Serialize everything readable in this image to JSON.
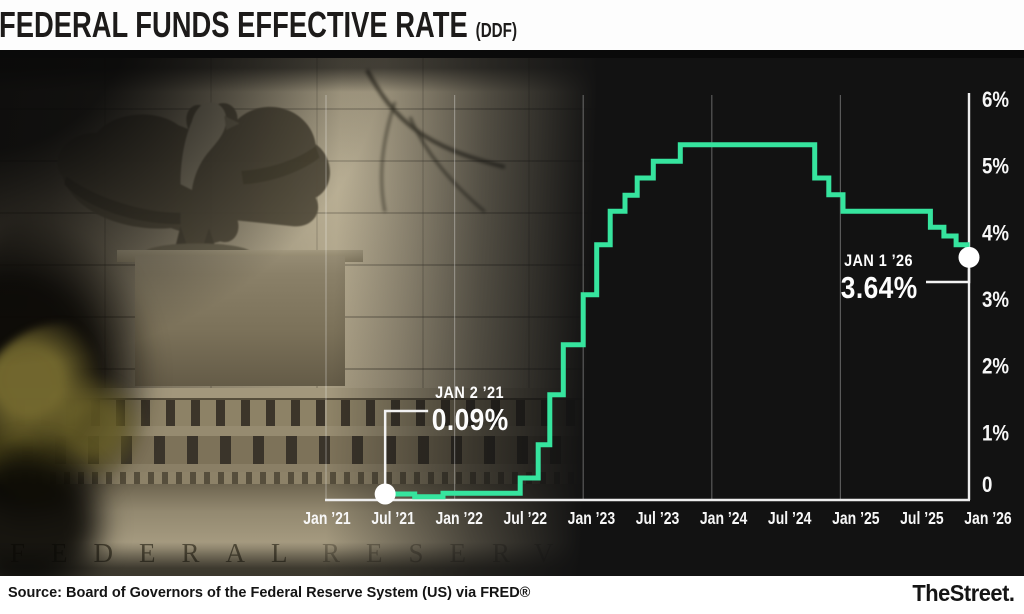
{
  "header": {
    "title": "FEDERAL FUNDS EFFECTIVE RATE",
    "ticker": "(DDF)"
  },
  "photo": {
    "engraving_left": "FEDERAL",
    "engraving_right": "RESERV"
  },
  "chart_data": {
    "type": "line",
    "subtype": "step",
    "title": "Federal Funds Effective Rate (DDF)",
    "xlabel": "",
    "ylabel": "",
    "ylim": [
      0,
      6
    ],
    "grid": "vertical-yearly",
    "legend": "none",
    "line_color": "#36e49e",
    "dot_color": "#ffffff",
    "axis_color": "#ededed",
    "label_color": "#f7f7f7",
    "y_ticks": [
      {
        "value": 6,
        "label": "6%"
      },
      {
        "value": 5,
        "label": "5%"
      },
      {
        "value": 4,
        "label": "4%"
      },
      {
        "value": 3,
        "label": "3%"
      },
      {
        "value": 2,
        "label": "2%"
      },
      {
        "value": 1,
        "label": "1%"
      },
      {
        "value": 0,
        "label": "0"
      }
    ],
    "x_ticks": [
      "Jan ’21",
      "Jul ’21",
      "Jan ’22",
      "Jul ’22",
      "Jan ’23",
      "Jul ’23",
      "Jan ’24",
      "Jul ’24",
      "Jan ’25",
      "Jul ’25",
      "Jan ’26"
    ],
    "year_gridlines": [
      "Jan '21",
      "Jan '22",
      "Jan '23",
      "Jan '24",
      "Jan '25"
    ],
    "steps": [
      {
        "date": "Jan 2 '21",
        "rate": 0.09,
        "x": 0.092
      },
      {
        "date": "Apr '21",
        "rate": 0.05,
        "x": 0.138
      },
      {
        "date": "Jun '21",
        "rate": 0.1,
        "x": 0.182
      },
      {
        "date": "Mar '22",
        "rate": 0.33,
        "x": 0.302
      },
      {
        "date": "May '22",
        "rate": 0.83,
        "x": 0.33
      },
      {
        "date": "Jun '22",
        "rate": 1.58,
        "x": 0.348
      },
      {
        "date": "Jul '22",
        "rate": 2.33,
        "x": 0.369
      },
      {
        "date": "Sep '22",
        "rate": 3.08,
        "x": 0.4
      },
      {
        "date": "Nov '22",
        "rate": 3.83,
        "x": 0.421
      },
      {
        "date": "Dec '22",
        "rate": 4.33,
        "x": 0.442
      },
      {
        "date": "Feb '23",
        "rate": 4.57,
        "x": 0.465
      },
      {
        "date": "Mar '23",
        "rate": 4.83,
        "x": 0.484
      },
      {
        "date": "May '23",
        "rate": 5.08,
        "x": 0.509
      },
      {
        "date": "Jul '23",
        "rate": 5.33,
        "x": 0.551
      },
      {
        "date": "Sep '24",
        "rate": 4.83,
        "x": 0.76
      },
      {
        "date": "Nov '24",
        "rate": 4.58,
        "x": 0.782
      },
      {
        "date": "Dec '24",
        "rate": 4.33,
        "x": 0.804
      },
      {
        "date": "Sep '25",
        "rate": 4.09,
        "x": 0.94
      },
      {
        "date": "Oct '25",
        "rate": 3.96,
        "x": 0.961
      },
      {
        "date": "Nov '25",
        "rate": 3.83,
        "x": 0.98
      },
      {
        "date": "Dec '25",
        "rate": 3.64,
        "x": 0.997
      }
    ],
    "end_value": 3.64,
    "annotations": [
      {
        "id": "start",
        "label": "JAN 2 ’21",
        "value": "0.09%"
      },
      {
        "id": "end",
        "label": "JAN 1 ’26",
        "value": "3.64%"
      }
    ]
  },
  "footer": {
    "source": "Source: Board of Governors of the Federal Reserve System (US) via FRED®",
    "brand": "TheStreet."
  }
}
